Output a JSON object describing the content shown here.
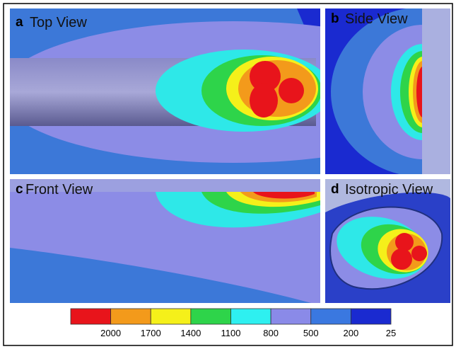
{
  "panels": [
    {
      "letter": "a",
      "title": "Top View"
    },
    {
      "letter": "b",
      "title": "Side View"
    },
    {
      "letter": "c",
      "title": "Front View"
    },
    {
      "letter": "d",
      "title": "Isotropic View"
    }
  ],
  "legend": {
    "colors": [
      "#e8141b",
      "#f39a1b",
      "#f5f01a",
      "#2ed44a",
      "#2ef0f0",
      "#8a8ae8",
      "#3a78e0",
      "#1a2ad0"
    ],
    "labels": [
      2000,
      1700,
      1400,
      1100,
      800,
      500,
      200,
      25
    ]
  }
}
